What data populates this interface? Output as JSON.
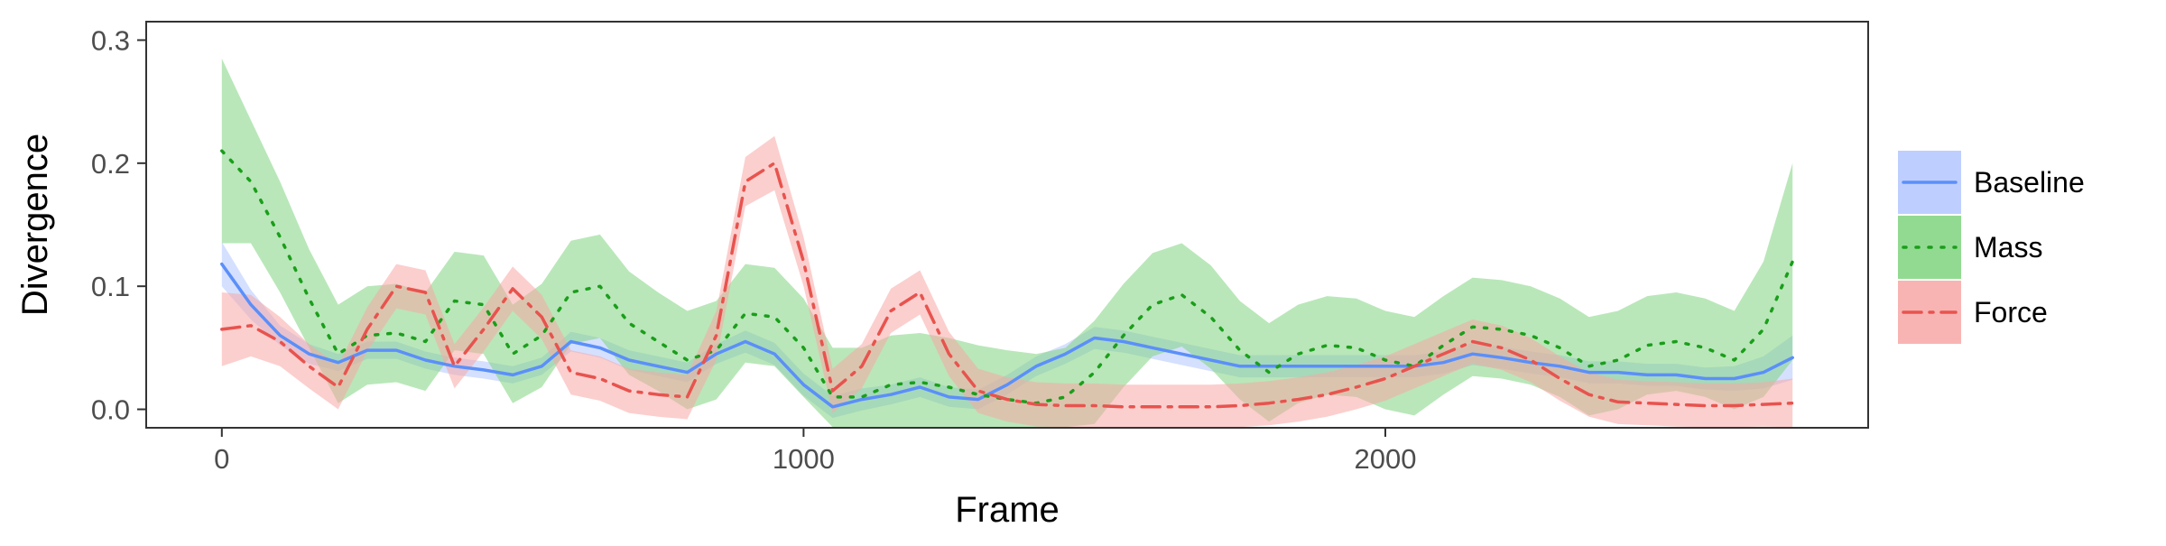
{
  "chart_data": {
    "type": "line",
    "title": "",
    "xlabel": "Frame",
    "ylabel": "Divergence",
    "xlim": [
      -130,
      2830
    ],
    "ylim": [
      -0.015,
      0.315
    ],
    "x_ticks": [
      0,
      1000,
      2000
    ],
    "x_tick_labels": [
      "0",
      "1000",
      "2000"
    ],
    "y_ticks": [
      0,
      0.1,
      0.2,
      0.3
    ],
    "y_tick_labels": [
      "0.0",
      "0.1",
      "0.2",
      "0.3"
    ],
    "grid": false,
    "legend_position": "right",
    "series": [
      {
        "name": "Baseline",
        "color": "#5b8ff9",
        "fill": "#b3c7ff",
        "line_style": "solid",
        "points": [
          [
            0,
            0.118
          ],
          [
            50,
            0.085
          ],
          [
            100,
            0.06
          ],
          [
            150,
            0.045
          ],
          [
            200,
            0.038
          ],
          [
            250,
            0.048
          ],
          [
            300,
            0.048
          ],
          [
            350,
            0.04
          ],
          [
            400,
            0.035
          ],
          [
            450,
            0.032
          ],
          [
            500,
            0.028
          ],
          [
            550,
            0.035
          ],
          [
            600,
            0.055
          ],
          [
            650,
            0.05
          ],
          [
            700,
            0.04
          ],
          [
            750,
            0.035
          ],
          [
            800,
            0.03
          ],
          [
            850,
            0.045
          ],
          [
            900,
            0.055
          ],
          [
            950,
            0.045
          ],
          [
            1000,
            0.02
          ],
          [
            1050,
            0.002
          ],
          [
            1100,
            0.008
          ],
          [
            1150,
            0.012
          ],
          [
            1200,
            0.018
          ],
          [
            1250,
            0.01
          ],
          [
            1300,
            0.008
          ],
          [
            1350,
            0.02
          ],
          [
            1400,
            0.035
          ],
          [
            1450,
            0.045
          ],
          [
            1500,
            0.058
          ],
          [
            1550,
            0.055
          ],
          [
            1600,
            0.05
          ],
          [
            1650,
            0.045
          ],
          [
            1700,
            0.04
          ],
          [
            1750,
            0.035
          ],
          [
            1800,
            0.035
          ],
          [
            1850,
            0.035
          ],
          [
            1900,
            0.035
          ],
          [
            1950,
            0.035
          ],
          [
            2000,
            0.035
          ],
          [
            2050,
            0.035
          ],
          [
            2100,
            0.038
          ],
          [
            2150,
            0.045
          ],
          [
            2200,
            0.042
          ],
          [
            2250,
            0.038
          ],
          [
            2300,
            0.035
          ],
          [
            2350,
            0.03
          ],
          [
            2400,
            0.03
          ],
          [
            2450,
            0.028
          ],
          [
            2500,
            0.028
          ],
          [
            2550,
            0.025
          ],
          [
            2600,
            0.025
          ],
          [
            2650,
            0.03
          ],
          [
            2700,
            0.042
          ]
        ],
        "band_width": [
          0.018,
          0.012,
          0.008,
          0.008,
          0.007,
          0.007,
          0.007,
          0.007,
          0.007,
          0.007,
          0.007,
          0.007,
          0.008,
          0.008,
          0.008,
          0.008,
          0.008,
          0.008,
          0.009,
          0.009,
          0.009,
          0.009,
          0.009,
          0.008,
          0.008,
          0.008,
          0.008,
          0.008,
          0.008,
          0.008,
          0.009,
          0.009,
          0.009,
          0.009,
          0.009,
          0.009,
          0.009,
          0.009,
          0.009,
          0.009,
          0.009,
          0.009,
          0.009,
          0.009,
          0.009,
          0.009,
          0.009,
          0.009,
          0.009,
          0.009,
          0.009,
          0.009,
          0.01,
          0.013,
          0.018
        ]
      },
      {
        "name": "Mass",
        "color": "#1a9e1a",
        "fill": "#7fd47f",
        "line_style": "dotted",
        "points": [
          [
            0,
            0.21
          ],
          [
            50,
            0.185
          ],
          [
            100,
            0.14
          ],
          [
            150,
            0.09
          ],
          [
            200,
            0.045
          ],
          [
            250,
            0.06
          ],
          [
            300,
            0.062
          ],
          [
            350,
            0.055
          ],
          [
            400,
            0.088
          ],
          [
            450,
            0.085
          ],
          [
            500,
            0.045
          ],
          [
            550,
            0.06
          ],
          [
            600,
            0.095
          ],
          [
            650,
            0.1
          ],
          [
            700,
            0.07
          ],
          [
            750,
            0.055
          ],
          [
            800,
            0.04
          ],
          [
            850,
            0.048
          ],
          [
            900,
            0.078
          ],
          [
            950,
            0.075
          ],
          [
            1000,
            0.05
          ],
          [
            1050,
            0.01
          ],
          [
            1100,
            0.01
          ],
          [
            1150,
            0.02
          ],
          [
            1200,
            0.022
          ],
          [
            1250,
            0.018
          ],
          [
            1300,
            0.012
          ],
          [
            1350,
            0.008
          ],
          [
            1400,
            0.005
          ],
          [
            1450,
            0.01
          ],
          [
            1500,
            0.03
          ],
          [
            1550,
            0.06
          ],
          [
            1600,
            0.085
          ],
          [
            1650,
            0.093
          ],
          [
            1700,
            0.075
          ],
          [
            1750,
            0.048
          ],
          [
            1800,
            0.03
          ],
          [
            1850,
            0.045
          ],
          [
            1900,
            0.052
          ],
          [
            1950,
            0.05
          ],
          [
            2000,
            0.04
          ],
          [
            2050,
            0.035
          ],
          [
            2100,
            0.052
          ],
          [
            2150,
            0.067
          ],
          [
            2200,
            0.065
          ],
          [
            2250,
            0.06
          ],
          [
            2300,
            0.05
          ],
          [
            2350,
            0.035
          ],
          [
            2400,
            0.04
          ],
          [
            2450,
            0.052
          ],
          [
            2500,
            0.055
          ],
          [
            2550,
            0.05
          ],
          [
            2600,
            0.04
          ],
          [
            2650,
            0.065
          ],
          [
            2700,
            0.12
          ]
        ],
        "band_width": [
          0.075,
          0.05,
          0.045,
          0.04,
          0.04,
          0.04,
          0.04,
          0.04,
          0.04,
          0.04,
          0.04,
          0.042,
          0.042,
          0.042,
          0.042,
          0.04,
          0.04,
          0.04,
          0.04,
          0.04,
          0.04,
          0.04,
          0.04,
          0.04,
          0.04,
          0.04,
          0.04,
          0.04,
          0.04,
          0.04,
          0.042,
          0.042,
          0.042,
          0.042,
          0.042,
          0.04,
          0.04,
          0.04,
          0.04,
          0.04,
          0.04,
          0.04,
          0.04,
          0.04,
          0.04,
          0.04,
          0.04,
          0.04,
          0.04,
          0.04,
          0.04,
          0.04,
          0.04,
          0.055,
          0.08
        ]
      },
      {
        "name": "Force",
        "color": "#e8534e",
        "fill": "#f7a7a6",
        "line_style": "dashdot",
        "points": [
          [
            0,
            0.065
          ],
          [
            50,
            0.068
          ],
          [
            100,
            0.055
          ],
          [
            150,
            0.035
          ],
          [
            200,
            0.018
          ],
          [
            250,
            0.065
          ],
          [
            300,
            0.1
          ],
          [
            350,
            0.095
          ],
          [
            400,
            0.035
          ],
          [
            450,
            0.065
          ],
          [
            500,
            0.098
          ],
          [
            550,
            0.075
          ],
          [
            600,
            0.03
          ],
          [
            650,
            0.025
          ],
          [
            700,
            0.015
          ],
          [
            750,
            0.012
          ],
          [
            800,
            0.01
          ],
          [
            850,
            0.06
          ],
          [
            900,
            0.185
          ],
          [
            950,
            0.2
          ],
          [
            1000,
            0.12
          ],
          [
            1050,
            0.015
          ],
          [
            1100,
            0.035
          ],
          [
            1150,
            0.08
          ],
          [
            1200,
            0.095
          ],
          [
            1250,
            0.045
          ],
          [
            1300,
            0.015
          ],
          [
            1350,
            0.008
          ],
          [
            1400,
            0.004
          ],
          [
            1450,
            0.003
          ],
          [
            1500,
            0.003
          ],
          [
            1550,
            0.002
          ],
          [
            1600,
            0.002
          ],
          [
            1650,
            0.002
          ],
          [
            1700,
            0.002
          ],
          [
            1750,
            0.003
          ],
          [
            1800,
            0.005
          ],
          [
            1850,
            0.008
          ],
          [
            1900,
            0.012
          ],
          [
            1950,
            0.018
          ],
          [
            2000,
            0.025
          ],
          [
            2050,
            0.035
          ],
          [
            2100,
            0.045
          ],
          [
            2150,
            0.055
          ],
          [
            2200,
            0.05
          ],
          [
            2250,
            0.04
          ],
          [
            2300,
            0.025
          ],
          [
            2350,
            0.012
          ],
          [
            2400,
            0.006
          ],
          [
            2450,
            0.005
          ],
          [
            2500,
            0.004
          ],
          [
            2550,
            0.003
          ],
          [
            2600,
            0.003
          ],
          [
            2650,
            0.004
          ],
          [
            2700,
            0.005
          ]
        ],
        "band_width": [
          0.03,
          0.025,
          0.02,
          0.018,
          0.018,
          0.018,
          0.018,
          0.018,
          0.018,
          0.018,
          0.018,
          0.018,
          0.018,
          0.018,
          0.018,
          0.018,
          0.018,
          0.02,
          0.02,
          0.022,
          0.02,
          0.018,
          0.018,
          0.018,
          0.018,
          0.018,
          0.018,
          0.018,
          0.018,
          0.018,
          0.018,
          0.018,
          0.018,
          0.018,
          0.018,
          0.018,
          0.018,
          0.018,
          0.018,
          0.018,
          0.018,
          0.018,
          0.018,
          0.018,
          0.018,
          0.018,
          0.018,
          0.018,
          0.018,
          0.018,
          0.018,
          0.018,
          0.018,
          0.018,
          0.02
        ]
      }
    ]
  }
}
